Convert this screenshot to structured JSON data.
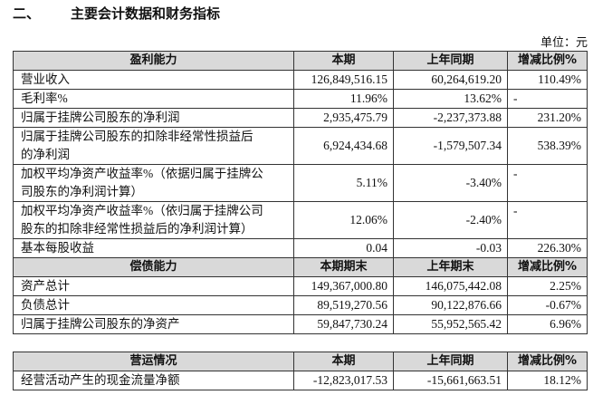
{
  "header": {
    "section": "二、",
    "title": "主要会计数据和财务指标",
    "unit": "单位：元"
  },
  "tables": [
    {
      "columns": [
        "盈利能力",
        "本期",
        "上年同期",
        "增减比例%"
      ],
      "rows": [
        {
          "label": [
            "营业收入"
          ],
          "cells": [
            "126,849,516.15",
            "60,264,619.20",
            "110.49%"
          ]
        },
        {
          "label": [
            "毛利率%"
          ],
          "cells": [
            "11.96%",
            "13.62%",
            "-"
          ]
        },
        {
          "label": [
            "归属于挂牌公司股东的净利润"
          ],
          "cells": [
            "2,935,475.79",
            "-2,237,373.88",
            "231.20%"
          ]
        },
        {
          "label": [
            "归属于挂牌公司股东的扣除非经常性损益后",
            "的净利润"
          ],
          "cells": [
            "6,924,434.68",
            "-1,579,507.34",
            "538.39%"
          ]
        },
        {
          "label": [
            "加权平均净资产收益率%（依据归属于挂牌公",
            "司股东的净利润计算）"
          ],
          "cells": [
            "5.11%",
            "-3.40%",
            "-"
          ]
        },
        {
          "label": [
            "加权平均净资产收益率%（依归属于挂牌公司",
            "股东的扣除非经常性损益后的净利润计算）"
          ],
          "cells": [
            "12.06%",
            "-2.40%",
            "-"
          ]
        },
        {
          "label": [
            "基本每股收益"
          ],
          "cells": [
            "0.04",
            "-0.03",
            "226.30%"
          ]
        }
      ]
    },
    {
      "columns": [
        "偿债能力",
        "本期期末",
        "上年期末",
        "增减比例%"
      ],
      "rows": [
        {
          "label": [
            "资产总计"
          ],
          "cells": [
            "149,367,000.80",
            "146,075,442.08",
            "2.25%"
          ]
        },
        {
          "label": [
            "负债总计"
          ],
          "cells": [
            "89,519,270.56",
            "90,122,876.66",
            "-0.67%"
          ]
        },
        {
          "label": [
            "归属于挂牌公司股东的净资产"
          ],
          "cells": [
            "59,847,730.24",
            "55,952,565.42",
            "6.96%"
          ]
        }
      ]
    },
    {
      "columns": [
        "营运情况",
        "本期",
        "上年同期",
        "增减比例%"
      ],
      "rows": [
        {
          "label": [
            "经营活动产生的现金流量净额"
          ],
          "cells": [
            "-12,823,017.53",
            "-15,661,663.51",
            "18.12%"
          ]
        }
      ]
    }
  ]
}
